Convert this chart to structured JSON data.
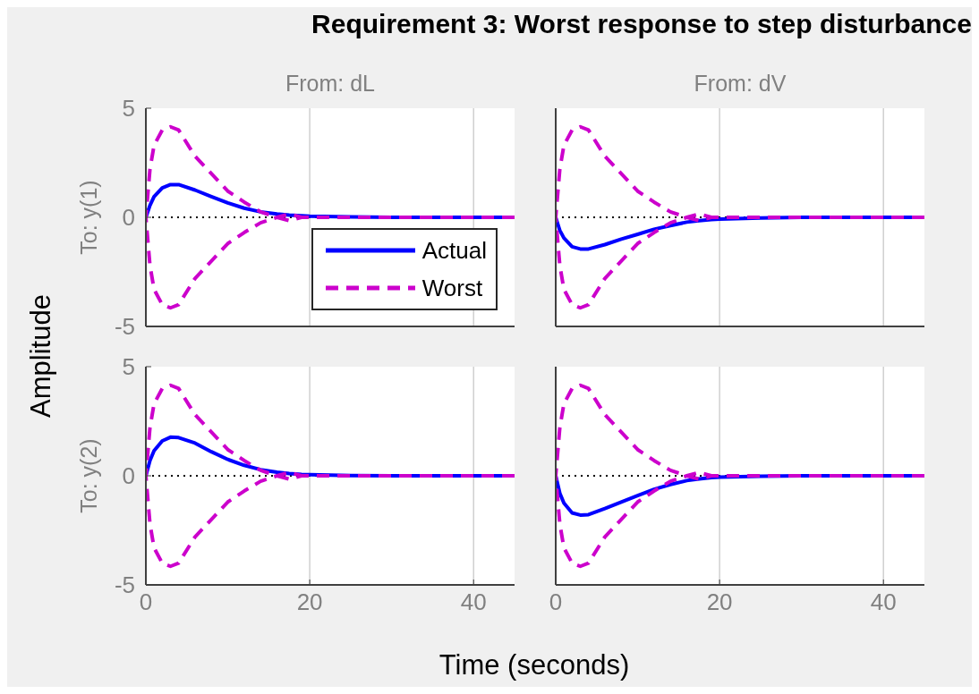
{
  "chart_data": [
    {
      "type": "line",
      "title": "From: dL",
      "ylabel": "To: y(1)",
      "annotations": [
        "Requirement 3: Worst response to step disturbance",
        "Amplitude",
        "Time (seconds)"
      ],
      "x": [
        0,
        0.5,
        1,
        2,
        3,
        4,
        6,
        8,
        10,
        12,
        14,
        16,
        17.5,
        19,
        20,
        25,
        30,
        45
      ],
      "series": [
        {
          "name": "Actual",
          "color": "#0000ff",
          "line_style": "solid",
          "values": [
            0,
            0.55,
            0.95,
            1.35,
            1.5,
            1.5,
            1.25,
            0.95,
            0.66,
            0.42,
            0.25,
            0.15,
            0.1,
            0.07,
            0.05,
            0.02,
            0,
            0
          ]
        },
        {
          "name": "Worst",
          "color": "#cc00cc",
          "line_style": "dashed",
          "x": [
            45,
            30,
            20,
            19,
            17.5,
            16,
            14,
            12,
            10,
            8,
            6,
            4,
            3,
            2,
            1,
            0.5,
            0,
            0.5,
            1,
            2,
            3,
            4,
            6,
            8,
            10,
            12,
            14,
            16,
            17.5,
            19
          ],
          "values": [
            0,
            0,
            0,
            0,
            -0.15,
            0,
            0.25,
            0.7,
            1.2,
            2.0,
            2.8,
            4.0,
            4.15,
            4.0,
            3.3,
            2.2,
            0,
            -2.2,
            -3.3,
            -4.0,
            -4.15,
            -4.0,
            -2.8,
            -2.0,
            -1.2,
            -0.7,
            -0.25,
            0,
            0.15,
            0
          ]
        }
      ],
      "xlim": [
        0,
        45
      ],
      "xticks": [
        0,
        20,
        40
      ],
      "ylim": [
        -5,
        5
      ],
      "yticks": [
        -5,
        0,
        5
      ],
      "grid": "x",
      "legend": "bottom right",
      "tick_labels": "y",
      "ref_lines": [
        {
          "axis": "y",
          "value": 0,
          "color": "#000000",
          "line_style": "dotted"
        }
      ]
    },
    {
      "type": "line",
      "title": "From: dV",
      "x": [
        0,
        0.5,
        1,
        2,
        3,
        4,
        6,
        8,
        10,
        12,
        14,
        16,
        17.5,
        19,
        20,
        25,
        30,
        45
      ],
      "series": [
        {
          "color": "#0000ff",
          "line_style": "solid",
          "values": [
            0,
            -0.6,
            -0.95,
            -1.35,
            -1.45,
            -1.45,
            -1.25,
            -1.0,
            -0.78,
            -0.55,
            -0.38,
            -0.22,
            -0.15,
            -0.1,
            -0.08,
            -0.03,
            0,
            0
          ]
        },
        {
          "color": "#cc00cc",
          "line_style": "dashed",
          "x": [
            45,
            30,
            20,
            19,
            17.5,
            16,
            14,
            12,
            10,
            8,
            6,
            4,
            3,
            2,
            1,
            0.5,
            0,
            0.5,
            1,
            2,
            3,
            4,
            6,
            8,
            10,
            12,
            14,
            16,
            17.5,
            19
          ],
          "values": [
            0,
            0,
            0,
            0,
            -0.15,
            0,
            0.25,
            0.7,
            1.2,
            2.0,
            2.8,
            4.0,
            4.15,
            4.0,
            3.3,
            2.2,
            0,
            -2.2,
            -3.3,
            -4.0,
            -4.15,
            -4.0,
            -2.8,
            -2.0,
            -1.2,
            -0.7,
            -0.25,
            0,
            0.15,
            0
          ]
        }
      ],
      "xlim": [
        0,
        45
      ],
      "xticks": [
        0,
        20,
        40
      ],
      "ylim": [
        -5,
        5
      ],
      "yticks": [
        -5,
        0,
        5
      ],
      "grid": "x",
      "tick_labels": false,
      "ref_lines": [
        {
          "axis": "y",
          "value": 0,
          "color": "#000000",
          "line_style": "dotted"
        }
      ]
    },
    {
      "type": "line",
      "ylabel": "To: y(2)",
      "x": [
        0,
        0.5,
        1,
        2,
        3,
        4,
        6,
        8,
        10,
        12,
        14,
        16,
        17.5,
        19,
        20,
        25,
        30,
        45
      ],
      "series": [
        {
          "color": "#0000ff",
          "line_style": "solid",
          "values": [
            0,
            0.7,
            1.15,
            1.6,
            1.77,
            1.75,
            1.5,
            1.1,
            0.75,
            0.48,
            0.28,
            0.16,
            0.1,
            0.06,
            0.05,
            0.01,
            0,
            0
          ]
        },
        {
          "color": "#cc00cc",
          "line_style": "dashed",
          "x": [
            45,
            30,
            20,
            19,
            17.5,
            16,
            14,
            12,
            10,
            8,
            6,
            4,
            3,
            2,
            1,
            0.5,
            0,
            0.5,
            1,
            2,
            3,
            4,
            6,
            8,
            10,
            12,
            14,
            16,
            17.5,
            19
          ],
          "values": [
            0,
            0,
            0,
            0,
            -0.15,
            0,
            0.25,
            0.7,
            1.2,
            2.0,
            2.8,
            4.0,
            4.15,
            4.0,
            3.3,
            2.2,
            0,
            -2.2,
            -3.3,
            -4.0,
            -4.15,
            -4.0,
            -2.8,
            -2.0,
            -1.2,
            -0.7,
            -0.25,
            0,
            0.15,
            0
          ]
        }
      ],
      "xlim": [
        0,
        45
      ],
      "xticks": [
        0,
        20,
        40
      ],
      "ylim": [
        -5,
        5
      ],
      "yticks": [
        -5,
        0,
        5
      ],
      "grid": "x",
      "ref_lines": [
        {
          "axis": "y",
          "value": 0,
          "color": "#000000",
          "line_style": "dotted"
        }
      ]
    },
    {
      "type": "line",
      "x": [
        0,
        0.5,
        1,
        2,
        3,
        4,
        6,
        8,
        10,
        12,
        14,
        16,
        17.5,
        19,
        20,
        25,
        30,
        45
      ],
      "series": [
        {
          "color": "#0000ff",
          "line_style": "solid",
          "values": [
            0,
            -0.8,
            -1.25,
            -1.7,
            -1.8,
            -1.78,
            -1.5,
            -1.2,
            -0.91,
            -0.62,
            -0.4,
            -0.22,
            -0.14,
            -0.08,
            -0.06,
            -0.02,
            0,
            0
          ]
        },
        {
          "color": "#cc00cc",
          "line_style": "dashed",
          "x": [
            45,
            30,
            20,
            19,
            17.5,
            16,
            14,
            12,
            10,
            8,
            6,
            4,
            3,
            2,
            1,
            0.5,
            0,
            0.5,
            1,
            2,
            3,
            4,
            6,
            8,
            10,
            12,
            14,
            16,
            17.5,
            19
          ],
          "values": [
            0,
            0,
            0,
            0,
            -0.15,
            0,
            0.25,
            0.7,
            1.2,
            2.0,
            2.8,
            4.0,
            4.15,
            4.0,
            3.3,
            2.2,
            0,
            -2.2,
            -3.3,
            -4.0,
            -4.15,
            -4.0,
            -2.8,
            -2.0,
            -1.2,
            -0.7,
            -0.25,
            0,
            0.15,
            0
          ]
        }
      ],
      "xlim": [
        0,
        45
      ],
      "xticks": [
        0,
        20,
        40
      ],
      "ylim": [
        -5,
        5
      ],
      "yticks": [
        -5,
        0,
        5
      ],
      "grid": "x",
      "tick_labels": "x",
      "ref_lines": [
        {
          "axis": "y",
          "value": 0,
          "color": "#000000",
          "line_style": "dotted"
        }
      ]
    }
  ]
}
